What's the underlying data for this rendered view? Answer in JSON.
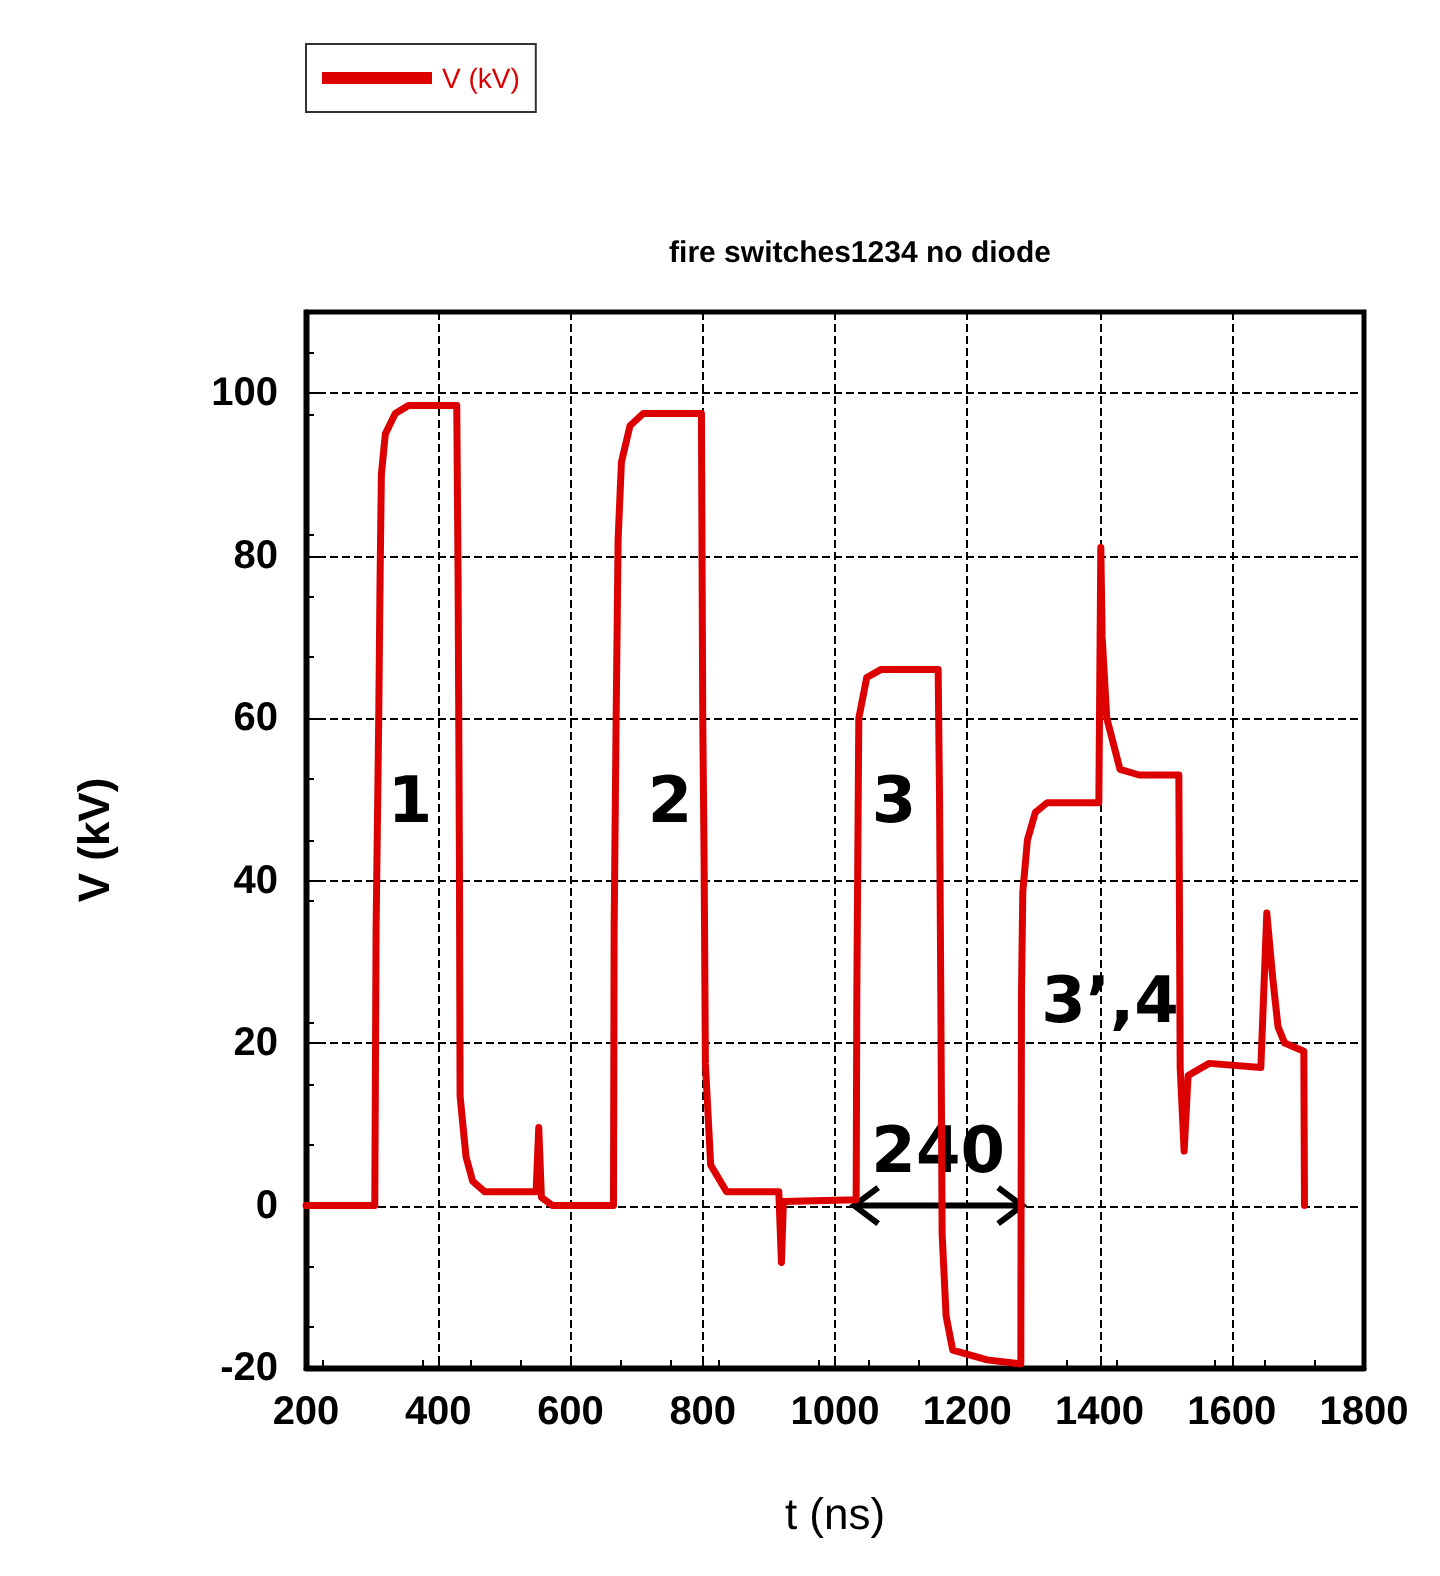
{
  "chart_data": {
    "type": "line",
    "title": "fire switches1234 no diode",
    "xlabel": "t (ns)",
    "ylabel": "V (kV)",
    "xlim": [
      200,
      1800
    ],
    "xticks": [
      200,
      400,
      600,
      800,
      1000,
      1200,
      1400,
      1600,
      1800
    ],
    "ylim": [
      -20,
      110
    ],
    "yticks": [
      -20,
      0,
      20,
      40,
      60,
      80,
      100
    ],
    "grid": true,
    "legend": "top left",
    "marker": "none",
    "line_style": "solid",
    "series": [
      {
        "name": "V (kV)",
        "color": "#dd0000",
        "x": [
          200,
          304,
          306,
          310,
          312,
          314,
          320,
          335,
          355,
          428,
          430,
          432,
          433,
          442,
          452,
          470,
          548,
          552,
          556,
          573,
          665,
          666,
          669,
          672,
          677,
          690,
          710,
          798,
          800,
          802,
          804,
          812,
          836,
          915,
          919,
          922,
          1032,
          1033,
          1036,
          1048,
          1070,
          1156,
          1158,
          1160,
          1162,
          1168,
          1178,
          1230,
          1281,
          1282,
          1284,
          1291,
          1303,
          1321,
          1399,
          1402,
          1404,
          1411,
          1431,
          1460,
          1520,
          1522,
          1528,
          1534,
          1566,
          1644,
          1653,
          1662,
          1670,
          1680,
          1709,
          1710
        ],
        "values": [
          0,
          0,
          34,
          60,
          77,
          90,
          95,
          97.5,
          98.5,
          98.5,
          77,
          43,
          13.5,
          6,
          3,
          1.7,
          1.7,
          9.6,
          1,
          0,
          0,
          34,
          60,
          82,
          91.5,
          96,
          97.5,
          97.5,
          60,
          43,
          17.5,
          5,
          1.7,
          1.7,
          -7,
          0.5,
          0.7,
          26,
          60,
          65,
          66,
          66,
          51,
          26,
          -3.5,
          -13.6,
          -17.8,
          -19,
          -19.5,
          26,
          38.6,
          45,
          48.4,
          49.6,
          49.6,
          81,
          70,
          60,
          53.7,
          53,
          53,
          17,
          6.7,
          16,
          17.5,
          17,
          36,
          28,
          22,
          20,
          19,
          0
        ]
      }
    ],
    "annotations": [
      "1",
      "2",
      "3",
      "3’,4",
      {
        "text": "240",
        "x": 1156,
        "y": 0
      }
    ]
  }
}
